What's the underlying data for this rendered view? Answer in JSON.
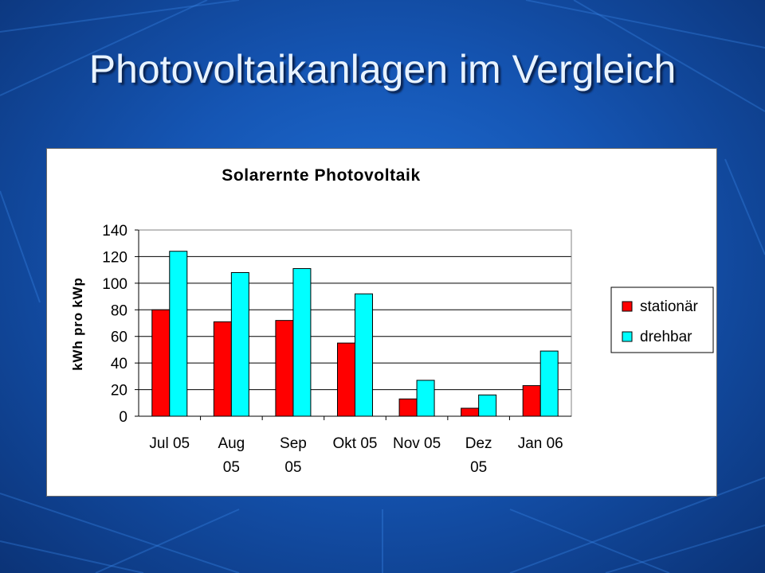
{
  "slide": {
    "title": "Photovoltaikanlagen im Vergleich"
  },
  "colors": {
    "stationaer": "#ff0000",
    "drehbar": "#00ffff",
    "background": "#1a60c4"
  },
  "chart_data": {
    "type": "bar",
    "title": "Solarernte Photovoltaik",
    "xlabel": "",
    "ylabel": "kWh pro kWp",
    "ylim": [
      0,
      140
    ],
    "yticks": [
      0,
      20,
      40,
      60,
      80,
      100,
      120,
      140
    ],
    "grid": true,
    "legend_position": "right",
    "categories": [
      [
        "Jul 05"
      ],
      [
        "Aug",
        "05"
      ],
      [
        "Sep",
        "05"
      ],
      [
        "Okt 05"
      ],
      [
        "Nov 05"
      ],
      [
        "Dez",
        "05"
      ],
      [
        "Jan 06"
      ]
    ],
    "series": [
      {
        "name": "stationär",
        "color": "#ff0000",
        "values": [
          80,
          71,
          72,
          55,
          13,
          6,
          23
        ]
      },
      {
        "name": "drehbar",
        "color": "#00ffff",
        "values": [
          124,
          108,
          111,
          92,
          27,
          16,
          49
        ]
      }
    ]
  }
}
